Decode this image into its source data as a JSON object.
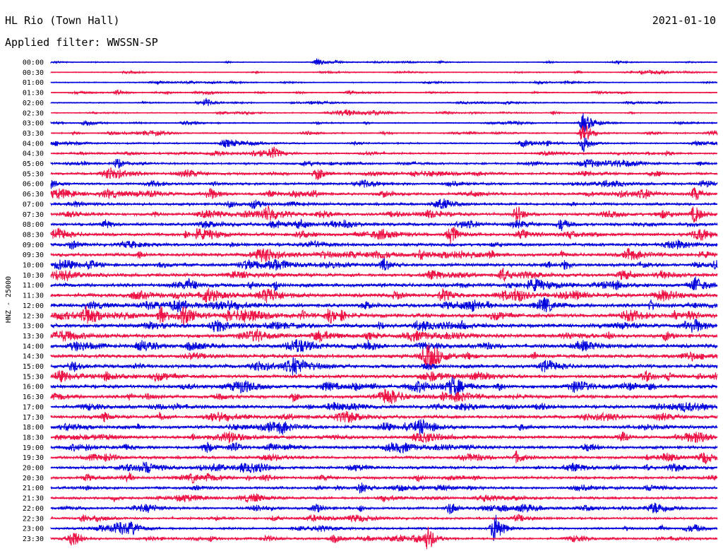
{
  "header": {
    "station": "HL Rio (Town Hall)",
    "filter_line": "Applied filter: WWSSN-SP",
    "date": "2021-01-10"
  },
  "chart_data": {
    "type": "line",
    "title": "HL Rio (Town Hall)",
    "subtitle": "Applied filter: WWSSN-SP",
    "date": "2021-01-10",
    "ylabel": "HNZ - 25000",
    "xlabel": "",
    "grid": false,
    "legend": "none",
    "colors": [
      "#0000dd",
      "#ee1144"
    ],
    "rows": [
      "00:00",
      "00:30",
      "01:00",
      "01:30",
      "02:00",
      "02:30",
      "03:00",
      "03:30",
      "04:00",
      "04:30",
      "05:00",
      "05:30",
      "06:00",
      "06:30",
      "07:00",
      "07:30",
      "08:00",
      "08:30",
      "09:00",
      "09:30",
      "10:00",
      "10:30",
      "11:00",
      "11:30",
      "12:00",
      "12:30",
      "13:00",
      "13:30",
      "14:00",
      "14:30",
      "15:00",
      "15:30",
      "16:00",
      "16:30",
      "17:00",
      "17:30",
      "18:00",
      "18:30",
      "19:00",
      "19:30",
      "20:00",
      "20:30",
      "21:00",
      "21:30",
      "22:00",
      "22:30",
      "23:00",
      "23:30"
    ],
    "noise_level": [
      0.6,
      0.7,
      0.8,
      0.8,
      0.9,
      0.9,
      0.9,
      1.0,
      1.2,
      1.3,
      1.5,
      1.8,
      1.9,
      2.0,
      2.1,
      2.2,
      2.4,
      2.4,
      2.5,
      2.6,
      2.6,
      2.7,
      2.9,
      3.0,
      3.1,
      3.2,
      3.1,
      3.0,
      3.0,
      2.9,
      2.9,
      2.8,
      2.8,
      2.7,
      2.6,
      2.6,
      2.5,
      2.4,
      2.4,
      2.3,
      2.2,
      2.1,
      2.0,
      1.9,
      1.8,
      1.8,
      1.7,
      1.7
    ],
    "events": [
      {
        "row": 0,
        "minute": 12,
        "amplitude": 5
      },
      {
        "row": 3,
        "minute": 3,
        "amplitude": 4
      },
      {
        "row": 4,
        "minute": 7,
        "amplitude": 6
      },
      {
        "row": 6,
        "minute": 24,
        "amplitude": 14
      },
      {
        "row": 7,
        "minute": 24,
        "amplitude": 18
      },
      {
        "row": 8,
        "minute": 24,
        "amplitude": 12
      },
      {
        "row": 9,
        "minute": 10,
        "amplitude": 8
      },
      {
        "row": 10,
        "minute": 3,
        "amplitude": 7
      },
      {
        "row": 11,
        "minute": 12,
        "amplitude": 8
      },
      {
        "row": 12,
        "minute": 0,
        "amplitude": 6
      },
      {
        "row": 13,
        "minute": 29,
        "amplitude": 10
      },
      {
        "row": 15,
        "minute": 21,
        "amplitude": 11
      },
      {
        "row": 15,
        "minute": 29,
        "amplitude": 12
      },
      {
        "row": 16,
        "minute": 23,
        "amplitude": 8
      },
      {
        "row": 17,
        "minute": 18,
        "amplitude": 9
      },
      {
        "row": 20,
        "minute": 15,
        "amplitude": 8
      },
      {
        "row": 22,
        "minute": 29,
        "amplitude": 8
      },
      {
        "row": 23,
        "minute": 21,
        "amplitude": 9
      },
      {
        "row": 25,
        "minute": 5,
        "amplitude": 11
      },
      {
        "row": 25,
        "minute": 6,
        "amplitude": 10
      },
      {
        "row": 28,
        "minute": 4,
        "amplitude": 8
      },
      {
        "row": 30,
        "minute": 1,
        "amplitude": 7
      },
      {
        "row": 38,
        "minute": 7,
        "amplitude": 8
      },
      {
        "row": 39,
        "minute": 21,
        "amplitude": 8
      },
      {
        "row": 42,
        "minute": 14,
        "amplitude": 8
      },
      {
        "row": 44,
        "minute": 18,
        "amplitude": 9
      },
      {
        "row": 46,
        "minute": 20,
        "amplitude": 22
      },
      {
        "row": 47,
        "minute": 1,
        "amplitude": 14
      },
      {
        "row": 47,
        "minute": 17,
        "amplitude": 16
      }
    ]
  }
}
